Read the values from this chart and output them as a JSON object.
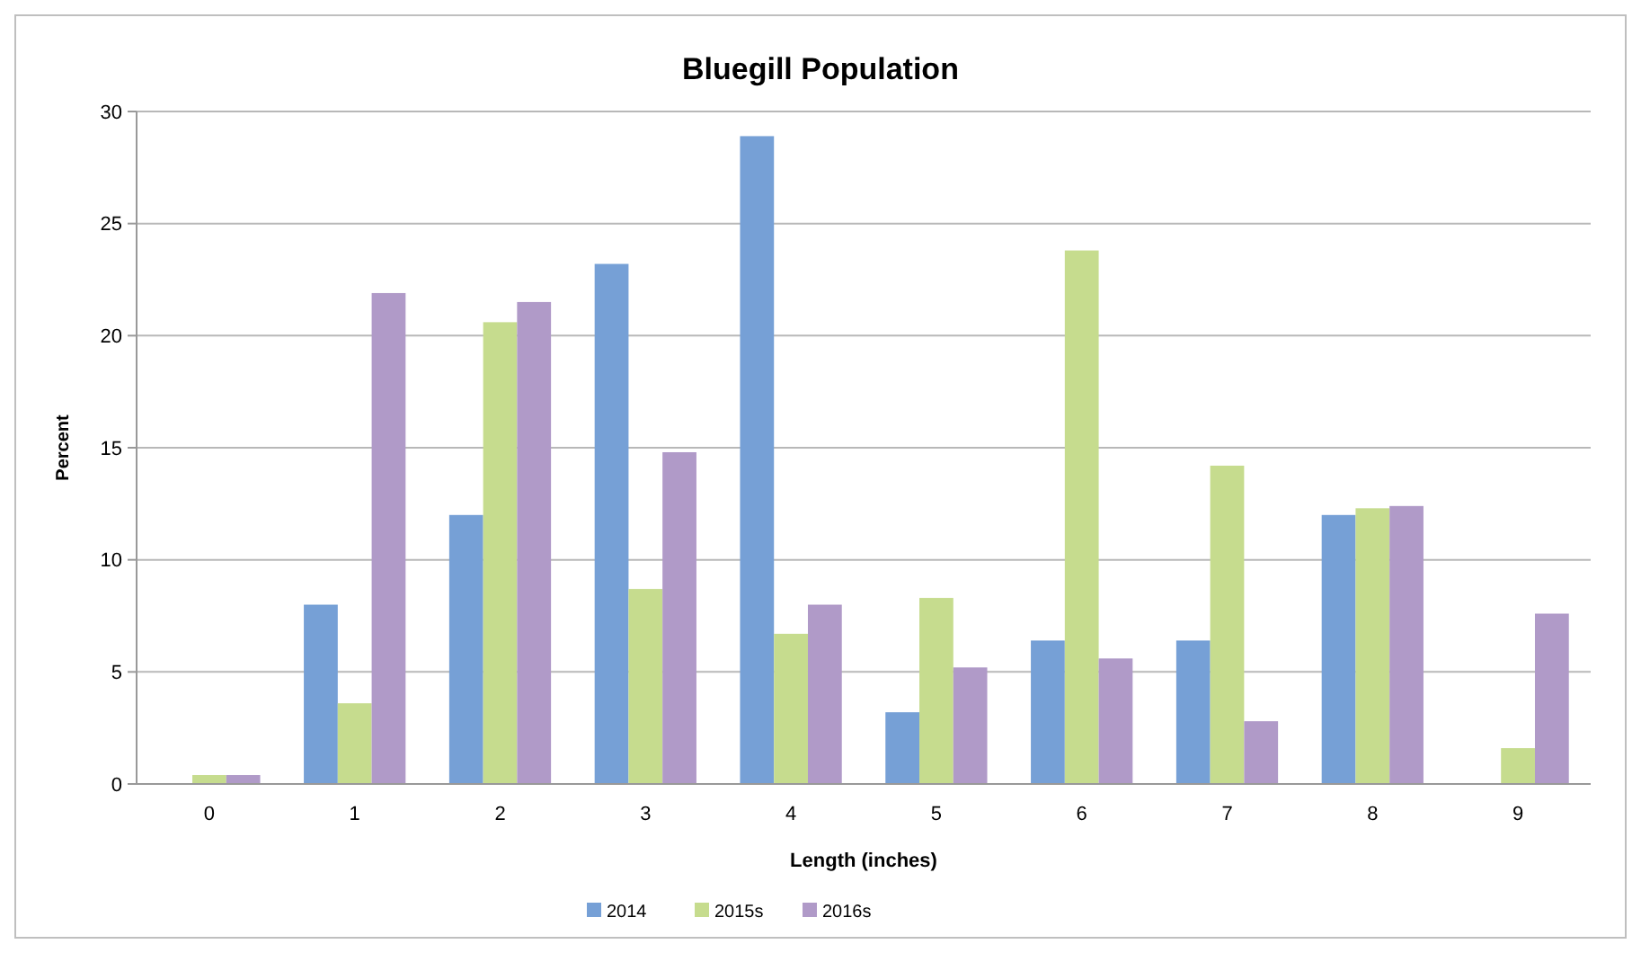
{
  "chart_data": {
    "type": "bar",
    "title": "Bluegill Population",
    "xlabel": "Length (inches)",
    "ylabel": "Percent",
    "categories": [
      "0",
      "1",
      "2",
      "3",
      "4",
      "5",
      "6",
      "7",
      "8",
      "9"
    ],
    "series": [
      {
        "name": "2014",
        "color": "#76a0d6",
        "values": [
          0,
          8,
          12,
          23.2,
          28.9,
          3.2,
          6.4,
          6.4,
          12,
          0
        ]
      },
      {
        "name": "2015s",
        "color": "#c6dc8e",
        "values": [
          0.4,
          3.6,
          20.6,
          8.7,
          6.7,
          8.3,
          23.8,
          14.2,
          12.3,
          1.6
        ]
      },
      {
        "name": "2016s",
        "color": "#b09ac8",
        "values": [
          0.4,
          21.9,
          21.5,
          14.8,
          8,
          5.2,
          5.6,
          2.8,
          12.4,
          7.6
        ]
      }
    ],
    "ylim": [
      0,
      30
    ],
    "yticks": [
      0,
      5,
      10,
      15,
      20,
      25,
      30
    ],
    "grid": "y",
    "legend": "bottom"
  }
}
